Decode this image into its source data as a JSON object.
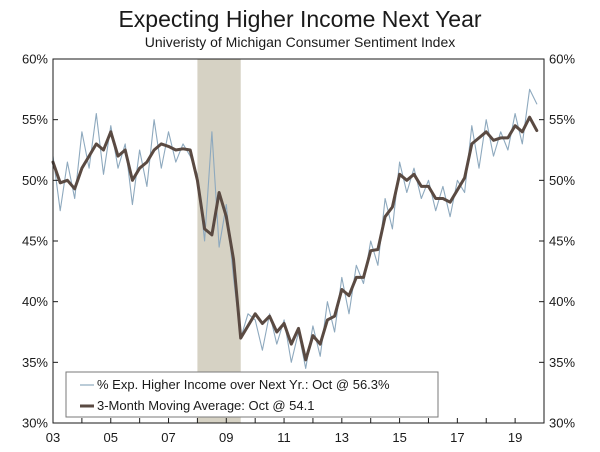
{
  "chart_data": {
    "type": "line",
    "title": "Expecting Higher Income Next Year",
    "subtitle": "Univeristy of Michigan Consumer Sentiment Index",
    "ylim": [
      30,
      60
    ],
    "xlim": [
      2003.0,
      2020.0
    ],
    "yticks": [
      30,
      35,
      40,
      45,
      50,
      55,
      60
    ],
    "ytick_labels": [
      "30%",
      "35%",
      "40%",
      "45%",
      "50%",
      "55%",
      "60%"
    ],
    "xticks": [
      2003,
      2005,
      2007,
      2009,
      2011,
      2013,
      2015,
      2017,
      2019
    ],
    "xtick_labels": [
      "03",
      "05",
      "07",
      "09",
      "11",
      "13",
      "15",
      "17",
      "19"
    ],
    "recession": {
      "start": 2008.0,
      "end": 2009.5
    },
    "colors": {
      "monthly": "#8ea9be",
      "average": "#5a4a42",
      "recession": "#d6d2c4",
      "axis": "#1a1a1a"
    },
    "legend": {
      "placement": "bottom-left",
      "entries": [
        "% Exp. Higher Income over Next Yr.: Oct @ 56.3%",
        "3-Month Moving Average: Oct @ 54.1"
      ]
    },
    "series": [
      {
        "name": "% Exp. Higher Income over Next Yr.",
        "x": [
          2003.0,
          2003.25,
          2003.5,
          2003.75,
          2004.0,
          2004.25,
          2004.5,
          2004.75,
          2005.0,
          2005.25,
          2005.5,
          2005.75,
          2006.0,
          2006.25,
          2006.5,
          2006.75,
          2007.0,
          2007.25,
          2007.5,
          2007.75,
          2008.0,
          2008.25,
          2008.5,
          2008.75,
          2009.0,
          2009.25,
          2009.5,
          2009.75,
          2010.0,
          2010.25,
          2010.5,
          2010.75,
          2011.0,
          2011.25,
          2011.5,
          2011.75,
          2012.0,
          2012.25,
          2012.5,
          2012.75,
          2013.0,
          2013.25,
          2013.5,
          2013.75,
          2014.0,
          2014.25,
          2014.5,
          2014.75,
          2015.0,
          2015.25,
          2015.5,
          2015.75,
          2016.0,
          2016.25,
          2016.5,
          2016.75,
          2017.0,
          2017.25,
          2017.5,
          2017.75,
          2018.0,
          2018.25,
          2018.5,
          2018.75,
          2019.0,
          2019.25,
          2019.5,
          2019.75
        ],
        "values": [
          52,
          47.5,
          51.5,
          48.5,
          54,
          51,
          55.5,
          50.5,
          54.5,
          51,
          53,
          48,
          52.5,
          49.5,
          55,
          51,
          54,
          51.5,
          53,
          52,
          50.5,
          45,
          54,
          44.5,
          48,
          42,
          37,
          39,
          38.5,
          36,
          39,
          36.5,
          38.5,
          35,
          37.5,
          34.5,
          38,
          35.5,
          40,
          37.5,
          42,
          39,
          43,
          41.5,
          45,
          43,
          48.5,
          46,
          51.5,
          49,
          51,
          48.5,
          50,
          47.5,
          49.5,
          47,
          50,
          49,
          54.5,
          51,
          55,
          52,
          54,
          52.5,
          55.5,
          53,
          57.5,
          56.3
        ]
      },
      {
        "name": "3-Month Moving Average",
        "x": [
          2003.0,
          2003.25,
          2003.5,
          2003.75,
          2004.0,
          2004.25,
          2004.5,
          2004.75,
          2005.0,
          2005.25,
          2005.5,
          2005.75,
          2006.0,
          2006.25,
          2006.5,
          2006.75,
          2007.0,
          2007.25,
          2007.5,
          2007.75,
          2008.0,
          2008.25,
          2008.5,
          2008.75,
          2009.0,
          2009.25,
          2009.5,
          2009.75,
          2010.0,
          2010.25,
          2010.5,
          2010.75,
          2011.0,
          2011.25,
          2011.5,
          2011.75,
          2012.0,
          2012.25,
          2012.5,
          2012.75,
          2013.0,
          2013.25,
          2013.5,
          2013.75,
          2014.0,
          2014.25,
          2014.5,
          2014.75,
          2015.0,
          2015.25,
          2015.5,
          2015.75,
          2016.0,
          2016.25,
          2016.5,
          2016.75,
          2017.0,
          2017.25,
          2017.5,
          2017.75,
          2018.0,
          2018.25,
          2018.5,
          2018.75,
          2019.0,
          2019.25,
          2019.5,
          2019.75
        ],
        "values": [
          51.5,
          49.8,
          50,
          49.3,
          51,
          52,
          53,
          52.5,
          54,
          52,
          52.5,
          50,
          51,
          51.5,
          52.5,
          53,
          52.8,
          52.5,
          52.6,
          52.5,
          50,
          46,
          45.5,
          49,
          47,
          43.5,
          37,
          38,
          39,
          38.2,
          38.8,
          37.5,
          38.2,
          36.5,
          37.8,
          35.2,
          37.2,
          36.5,
          38.5,
          38.8,
          41,
          40.5,
          42,
          42,
          44.2,
          44.3,
          47,
          47.8,
          50.5,
          50,
          50.5,
          49.5,
          49.5,
          48.5,
          48.5,
          48.2,
          49.2,
          50.2,
          53,
          53.5,
          54,
          53.3,
          53.5,
          53.5,
          54.5,
          54,
          55.2,
          54.1
        ]
      }
    ]
  }
}
